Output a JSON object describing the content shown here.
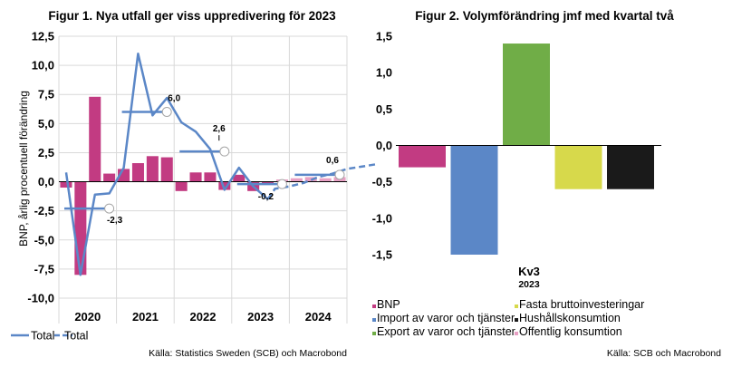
{
  "chart_data": [
    {
      "type": "bar+line",
      "title": "Figur 1. Nya utfall ger viss uppredivering för 2023",
      "ylabel": "BNP, årlig procentuell förändring",
      "ylim": [
        -10.0,
        12.5
      ],
      "yticks": [
        12.5,
        10.0,
        7.5,
        5.0,
        2.5,
        0.0,
        -2.5,
        -5.0,
        -7.5,
        -10.0
      ],
      "ytick_labels": [
        "12,5",
        "10,0",
        "7,5",
        "5,0",
        "2,5",
        "0,0",
        "-2,5",
        "-5,0",
        "-7,5",
        "-10,0"
      ],
      "years": [
        "2020",
        "2021",
        "2022",
        "2023",
        "2024"
      ],
      "quarterly_bars": {
        "outcome": [
          -0.5,
          -8.0,
          7.3,
          0.7,
          1.1,
          1.6,
          2.2,
          2.1,
          -0.8,
          0.8,
          0.8,
          -0.7,
          0.6,
          -0.8,
          -0.2
        ],
        "forecast": [
          0.2,
          0.3,
          0.4,
          0.3,
          0.4
        ],
        "outcome_color": "#c23b82",
        "forecast_color": "#e8a0c4"
      },
      "line_outcome": [
        0.8,
        -8.0,
        -1.1,
        -1.0,
        1.2,
        11.0,
        5.7,
        7.2,
        5.1,
        4.3,
        2.8,
        -0.7,
        1.2,
        -0.4,
        -1.5
      ],
      "line_forecast": [
        -0.6,
        -0.4,
        -0.1,
        0.4,
        0.7,
        1.1,
        1.3,
        1.5
      ],
      "line_color": "#5b87c7",
      "annual": [
        {
          "year": "2020",
          "value": -2.3,
          "label": "-2,3"
        },
        {
          "year": "2021",
          "value": 6.0,
          "label": "6,0"
        },
        {
          "year": "2022",
          "value": 2.6,
          "label": "2,6"
        },
        {
          "year": "2023",
          "value": -0.2,
          "label": "-0,2"
        },
        {
          "year": "2024",
          "value": 0.6,
          "label": "0,6"
        }
      ],
      "legend": [
        "Total",
        "Total"
      ]
    },
    {
      "type": "bar",
      "title": "Figur 2. Volymförändring jmf med kvartal två",
      "xlabel": "Kv3",
      "xlabel_sub": "2023",
      "ylim": [
        -1.5,
        1.5
      ],
      "yticks": [
        1.5,
        1.0,
        0.5,
        0.0,
        -0.5,
        -1.0,
        -1.5
      ],
      "ytick_labels": [
        "1,5",
        "1,0",
        "0,5",
        "0,0",
        "-0,5",
        "-1,0",
        "-1,5"
      ],
      "series": [
        {
          "name": "BNP",
          "value": -0.3,
          "color": "#c23b82"
        },
        {
          "name": "Import av varor och tjänster",
          "value": -1.5,
          "color": "#5b87c7"
        },
        {
          "name": "Export av varor och tjänster",
          "value": 1.4,
          "color": "#70ad47"
        },
        {
          "name": "Fasta bruttoinvesteringar",
          "value": -0.6,
          "color": "#d7d94b"
        },
        {
          "name": "Hushållskonsumtion",
          "value": -0.6,
          "color": "#1a1a1a"
        },
        {
          "name": "Offentlig konsumtion",
          "value": 0.0,
          "color": "#e8a0c4"
        }
      ]
    }
  ],
  "sources": {
    "left": "Källa: Statistics Sweden (SCB) och Macrobond",
    "right": "Källa: SCB och Macrobond"
  }
}
